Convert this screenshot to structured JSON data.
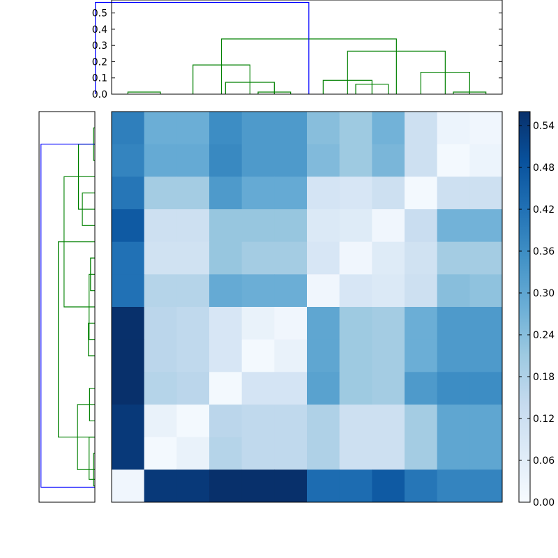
{
  "chart_data": [
    {
      "type": "heatmap",
      "n": 12,
      "colormap": "Blues",
      "vmin": 0.0,
      "vmax": 0.56,
      "values": [
        [
          0.39,
          0.28,
          0.28,
          0.36,
          0.33,
          0.33,
          0.24,
          0.21,
          0.27,
          0.12,
          0.03,
          0.02
        ],
        [
          0.38,
          0.29,
          0.29,
          0.37,
          0.33,
          0.33,
          0.25,
          0.21,
          0.26,
          0.12,
          0.01,
          0.03
        ],
        [
          0.41,
          0.2,
          0.2,
          0.33,
          0.29,
          0.29,
          0.1,
          0.09,
          0.12,
          0.01,
          0.12,
          0.12
        ],
        [
          0.47,
          0.12,
          0.12,
          0.22,
          0.22,
          0.22,
          0.08,
          0.07,
          0.02,
          0.13,
          0.27,
          0.27
        ],
        [
          0.42,
          0.11,
          0.11,
          0.22,
          0.2,
          0.2,
          0.09,
          0.02,
          0.07,
          0.11,
          0.2,
          0.2
        ],
        [
          0.42,
          0.17,
          0.17,
          0.29,
          0.28,
          0.28,
          0.02,
          0.09,
          0.08,
          0.12,
          0.24,
          0.23
        ],
        [
          0.56,
          0.16,
          0.15,
          0.09,
          0.04,
          0.02,
          0.3,
          0.21,
          0.2,
          0.28,
          0.33,
          0.33
        ],
        [
          0.56,
          0.16,
          0.15,
          0.09,
          0.01,
          0.04,
          0.3,
          0.21,
          0.2,
          0.28,
          0.33,
          0.33
        ],
        [
          0.56,
          0.17,
          0.16,
          0.01,
          0.1,
          0.1,
          0.31,
          0.21,
          0.2,
          0.33,
          0.36,
          0.36
        ],
        [
          0.54,
          0.04,
          0.01,
          0.16,
          0.15,
          0.15,
          0.18,
          0.12,
          0.12,
          0.2,
          0.3,
          0.3
        ],
        [
          0.54,
          0.01,
          0.04,
          0.17,
          0.15,
          0.15,
          0.18,
          0.12,
          0.12,
          0.2,
          0.3,
          0.3
        ],
        [
          0.02,
          0.54,
          0.54,
          0.56,
          0.57,
          0.57,
          0.43,
          0.43,
          0.47,
          0.41,
          0.38,
          0.38
        ]
      ]
    },
    {
      "type": "dendrogram",
      "orientation": "top",
      "ylim": [
        0.0,
        0.58
      ],
      "yticks": [
        "0.0",
        "0.1",
        "0.2",
        "0.3",
        "0.4",
        "0.5"
      ],
      "links": [
        {
          "l": 5,
          "r": 15,
          "h": 0.013,
          "c": "#008000"
        },
        {
          "l": 45,
          "r": 55,
          "h": 0.013,
          "c": "#008000"
        },
        {
          "l": 35,
          "r": 50,
          "h": 0.073,
          "c": "#008000"
        },
        {
          "l": 25,
          "r": 42.5,
          "h": 0.18,
          "c": "#008000"
        },
        {
          "l": 75,
          "r": 85,
          "h": 0.061,
          "c": "#008000"
        },
        {
          "l": 65,
          "r": 80,
          "h": 0.085,
          "c": "#008000"
        },
        {
          "l": 105,
          "r": 115,
          "h": 0.013,
          "c": "#008000"
        },
        {
          "l": 95,
          "r": 110,
          "h": 0.135,
          "c": "#008000"
        },
        {
          "l": 72.5,
          "r": 102.5,
          "h": 0.265,
          "c": "#008000"
        },
        {
          "l": 33.75,
          "r": 87.5,
          "h": 0.34,
          "c": "#008000"
        },
        {
          "l": -5,
          "r": 60.6,
          "h": 0.565,
          "c": "#0000ff"
        }
      ]
    },
    {
      "type": "dendrogram",
      "orientation": "left",
      "links": [
        {
          "l": 5,
          "r": 15,
          "h": 0.013,
          "c": "#008000"
        },
        {
          "l": 25,
          "r": 35,
          "h": 0.13,
          "c": "#008000"
        },
        {
          "l": 10,
          "r": 30,
          "h": 0.17,
          "c": "#008000"
        },
        {
          "l": 45,
          "r": 55,
          "h": 0.045,
          "c": "#008000"
        },
        {
          "l": 65,
          "r": 75,
          "h": 0.067,
          "c": "#008000"
        },
        {
          "l": 50,
          "r": 70,
          "h": 0.06,
          "c": "#008000"
        },
        {
          "l": 20,
          "r": 60,
          "h": 0.32,
          "c": "#008000"
        },
        {
          "l": 85,
          "r": 95,
          "h": 0.055,
          "c": "#008000"
        },
        {
          "l": 105,
          "r": 115,
          "h": 0.013,
          "c": "#008000"
        },
        {
          "l": 90,
          "r": 110,
          "h": 0.18,
          "c": "#008000"
        },
        {
          "l": 100,
          "r": 113,
          "h": 0.06,
          "c": "#008000"
        },
        {
          "l": 40,
          "r": 100,
          "h": 0.38,
          "c": "#008000"
        },
        {
          "l": 10,
          "r": 115.4,
          "h": 0.56,
          "c": "#0000ff"
        }
      ]
    },
    {
      "type": "colorbar",
      "vmin": 0.0,
      "vmax": 0.56,
      "ticks": [
        "0.00",
        "0.06",
        "0.12",
        "0.18",
        "0.24",
        "0.30",
        "0.36",
        "0.42",
        "0.48",
        "0.54"
      ]
    }
  ]
}
